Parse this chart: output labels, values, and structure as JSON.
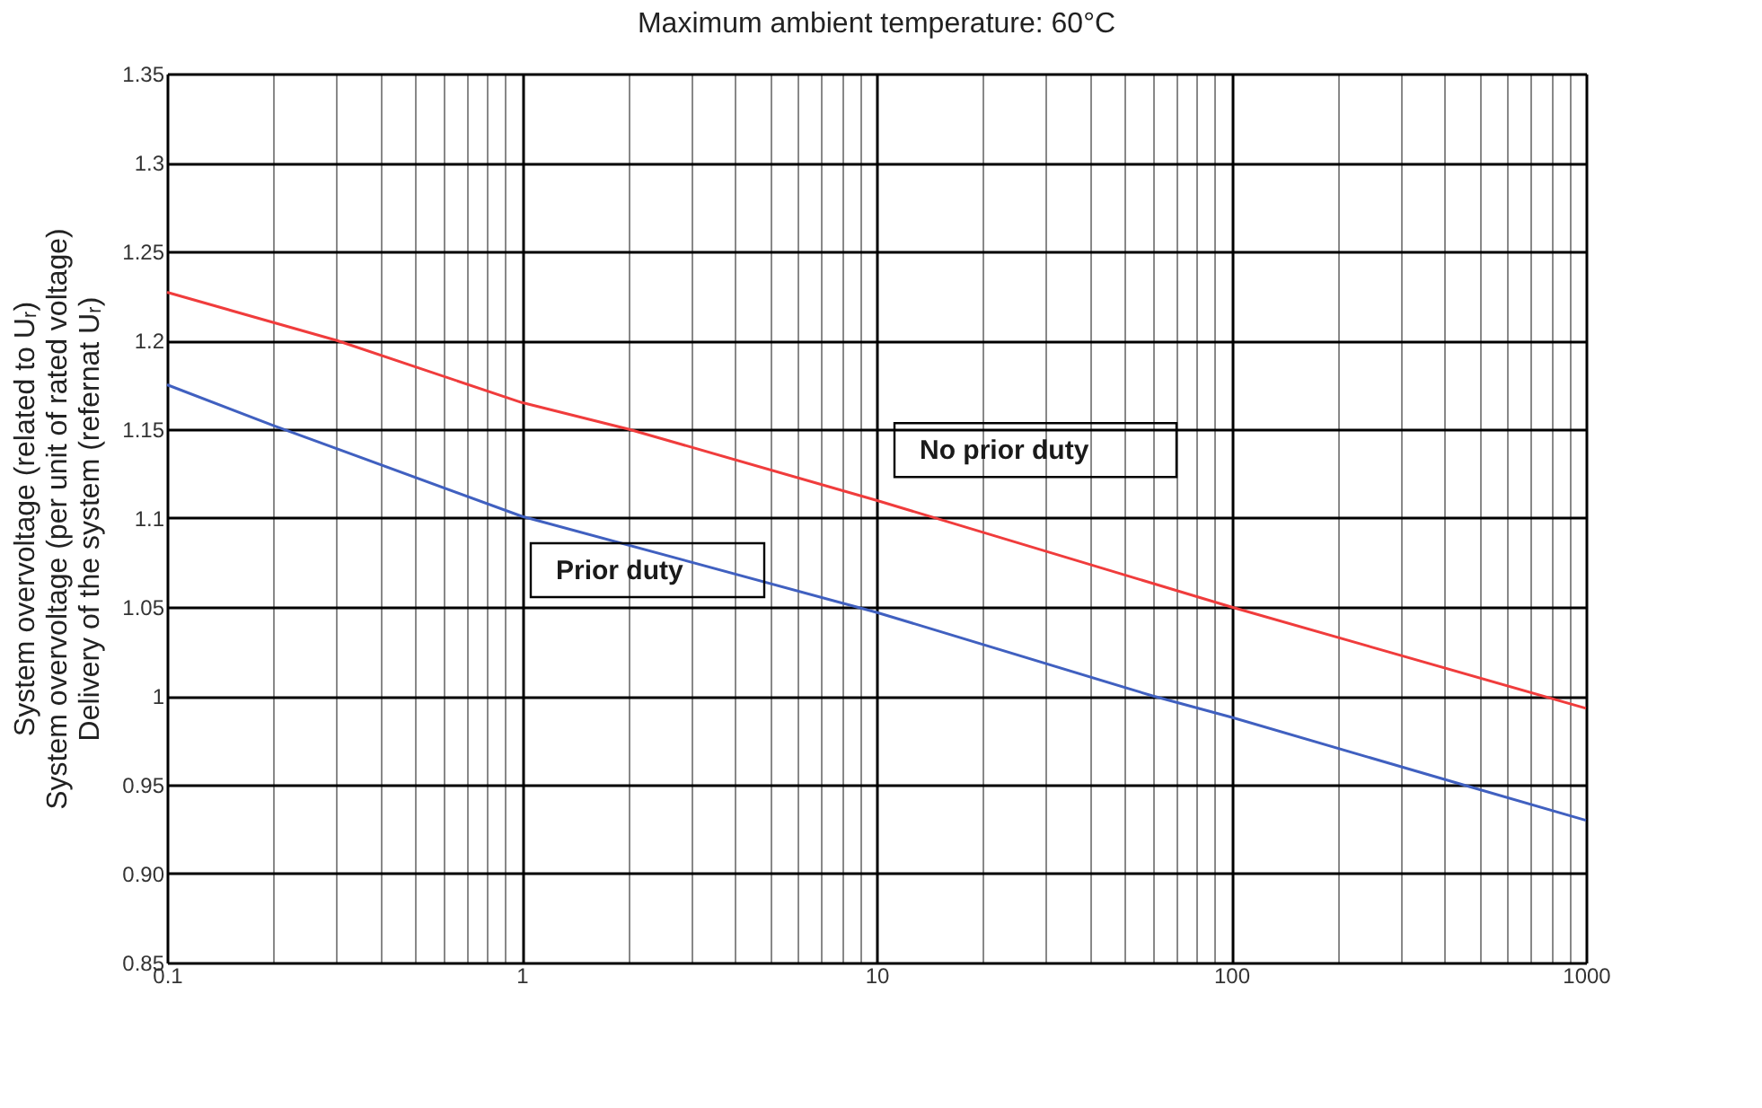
{
  "chart_data": {
    "type": "line",
    "title": "Maximum ambient temperature: 60°C",
    "ylabel": "System overvoltage (related to Uᵣ)\nSystem overvoltage (per unit of rated voltage)\nDelivery of the system (refernat Uᵣ)",
    "log": "x",
    "grid": true,
    "legend": false,
    "marker": "none",
    "line_style": "solid",
    "xlim": [
      0.1,
      1000
    ],
    "xticks": [
      0.1,
      {
        "value": 0.2,
        "label": null
      },
      {
        "value": 0.3,
        "label": null
      },
      {
        "value": 0.4,
        "label": null
      },
      {
        "value": 0.5,
        "label": null
      },
      {
        "value": 0.6,
        "label": null
      },
      {
        "value": 0.7,
        "label": null
      },
      {
        "value": 0.8,
        "label": null
      },
      {
        "value": 0.9,
        "label": null
      },
      1,
      {
        "value": 2,
        "label": null
      },
      {
        "value": 3,
        "label": null
      },
      {
        "value": 4,
        "label": null
      },
      {
        "value": 5,
        "label": null
      },
      {
        "value": 6,
        "label": null
      },
      {
        "value": 7,
        "label": null
      },
      {
        "value": 8,
        "label": null
      },
      {
        "value": 9,
        "label": null
      },
      10,
      {
        "value": 20,
        "label": null
      },
      {
        "value": 30,
        "label": null
      },
      {
        "value": 40,
        "label": null
      },
      {
        "value": 50,
        "label": null
      },
      {
        "value": 60,
        "label": null
      },
      {
        "value": 70,
        "label": null
      },
      {
        "value": 80,
        "label": null
      },
      {
        "value": 90,
        "label": null
      },
      100,
      {
        "value": 200,
        "label": null
      },
      {
        "value": 300,
        "label": null
      },
      {
        "value": 400,
        "label": null
      },
      {
        "value": 500,
        "label": null
      },
      {
        "value": 600,
        "label": null
      },
      {
        "value": 700,
        "label": null
      },
      {
        "value": 800,
        "label": null
      },
      {
        "value": 900,
        "label": null
      },
      1000
    ],
    "ylim": [
      0.85,
      1.35
    ],
    "yticks": [
      0.85,
      {
        "value": 0.9,
        "label": "0.90"
      },
      0.95,
      1,
      1.05,
      1.1,
      1.15,
      1.2,
      1.25,
      1.3,
      1.35
    ],
    "series": [
      {
        "name": "No prior duty",
        "color": "#f03c3c",
        "x": [
          0.1,
          0.3,
          1,
          2,
          10,
          100,
          1000
        ],
        "values": [
          1.227,
          1.2,
          1.165,
          1.15,
          1.11,
          1.05,
          0.993
        ]
      },
      {
        "name": "Prior duty",
        "color": "#4060c0",
        "x": [
          0.1,
          0.2,
          1,
          10,
          60,
          100,
          450,
          1000
        ],
        "values": [
          1.175,
          1.152,
          1.101,
          1.047,
          1.0,
          0.988,
          0.95,
          0.93
        ]
      }
    ]
  }
}
